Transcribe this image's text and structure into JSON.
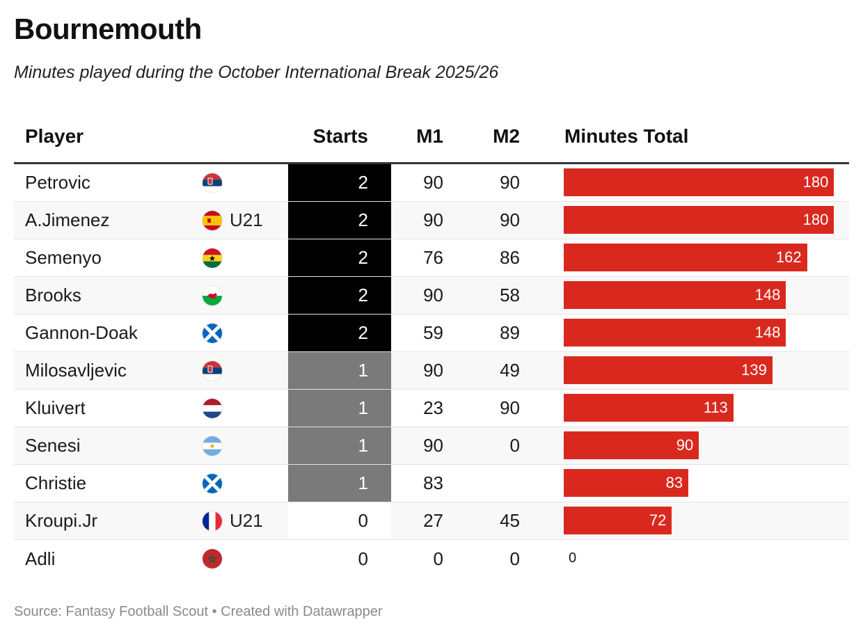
{
  "header": {
    "title": "Bournemouth",
    "subtitle": "Minutes played during the October International Break 2025/26"
  },
  "columns": {
    "player": "Player",
    "starts": "Starts",
    "m1": "M1",
    "m2": "M2",
    "total": "Minutes Total"
  },
  "colors": {
    "bar": "#d9291f",
    "starts_2": "#000000",
    "starts_1": "#7a7a7a",
    "starts_0": "#ffffff"
  },
  "chart_data": {
    "type": "table",
    "xlim": [
      0,
      190
    ],
    "rows": [
      {
        "player": "Petrovic",
        "flag": "serbia-flag-icon",
        "tag": "",
        "starts": 2,
        "m1": "90",
        "m2": "90",
        "total": 180
      },
      {
        "player": "A.Jimenez",
        "flag": "spain-flag-icon",
        "tag": "U21",
        "starts": 2,
        "m1": "90",
        "m2": "90",
        "total": 180
      },
      {
        "player": "Semenyo",
        "flag": "ghana-flag-icon",
        "tag": "",
        "starts": 2,
        "m1": "76",
        "m2": "86",
        "total": 162
      },
      {
        "player": "Brooks",
        "flag": "wales-flag-icon",
        "tag": "",
        "starts": 2,
        "m1": "90",
        "m2": "58",
        "total": 148
      },
      {
        "player": "Gannon-Doak",
        "flag": "scotland-flag-icon",
        "tag": "",
        "starts": 2,
        "m1": "59",
        "m2": "89",
        "total": 148
      },
      {
        "player": "Milosavljevic",
        "flag": "serbia-flag-icon",
        "tag": "",
        "starts": 1,
        "m1": "90",
        "m2": "49",
        "total": 139
      },
      {
        "player": "Kluivert",
        "flag": "netherlands-flag-icon",
        "tag": "",
        "starts": 1,
        "m1": "23",
        "m2": "90",
        "total": 113
      },
      {
        "player": "Senesi",
        "flag": "argentina-flag-icon",
        "tag": "",
        "starts": 1,
        "m1": "90",
        "m2": "0",
        "total": 90
      },
      {
        "player": "Christie",
        "flag": "scotland-flag-icon",
        "tag": "",
        "starts": 1,
        "m1": "83",
        "m2": "",
        "total": 83
      },
      {
        "player": "Kroupi.Jr",
        "flag": "france-flag-icon",
        "tag": "U21",
        "starts": 0,
        "m1": "27",
        "m2": "45",
        "total": 72
      },
      {
        "player": "Adli",
        "flag": "morocco-flag-icon",
        "tag": "",
        "starts": 0,
        "m1": "0",
        "m2": "0",
        "total": 0
      }
    ]
  },
  "footer": {
    "source": "Source: Fantasy Football Scout • Created with Datawrapper"
  }
}
